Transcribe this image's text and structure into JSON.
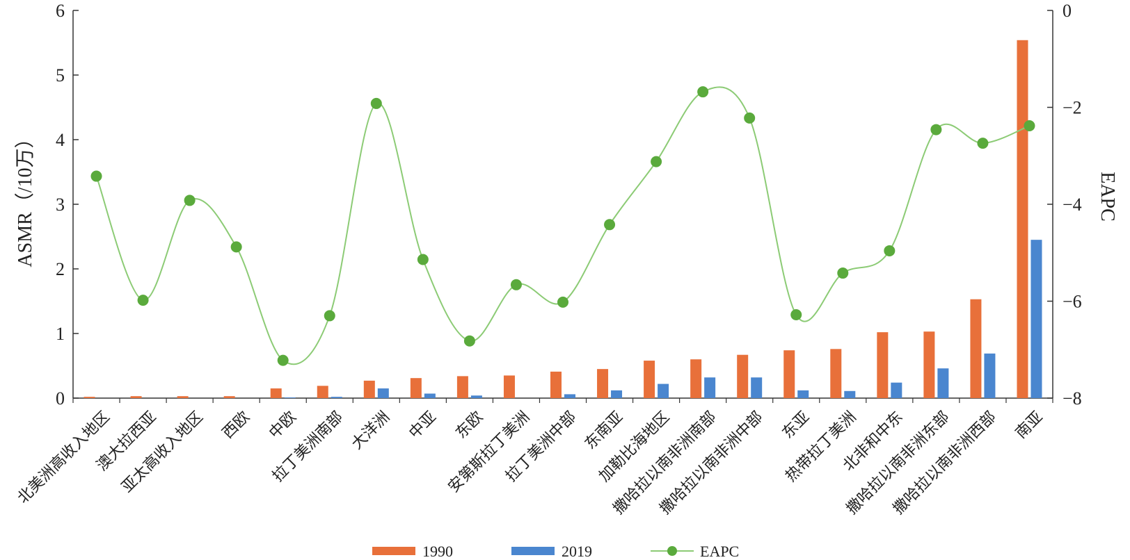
{
  "chart_data": {
    "type": "bar",
    "categories": [
      "北美洲高收入地区",
      "澳大拉西亚",
      "亚太高收入地区",
      "西欧",
      "中欧",
      "拉丁美洲南部",
      "大洋洲",
      "中亚",
      "东欧",
      "安第斯拉丁美洲",
      "拉丁美洲中部",
      "东南亚",
      "加勒比海地区",
      "撒哈拉以南非洲南部",
      "撒哈拉以南非洲中部",
      "东亚",
      "热带拉丁美洲",
      "北非和中东",
      "撒哈拉以南非洲东部",
      "撒哈拉以南非洲西部",
      "南亚"
    ],
    "series": [
      {
        "name": "1990",
        "axis": "left",
        "color": "#E8703A",
        "values": [
          0.02,
          0.03,
          0.03,
          0.03,
          0.15,
          0.19,
          0.27,
          0.31,
          0.34,
          0.35,
          0.41,
          0.45,
          0.58,
          0.6,
          0.67,
          0.74,
          0.76,
          1.02,
          1.03,
          1.53,
          5.54
        ]
      },
      {
        "name": "2019",
        "axis": "left",
        "color": "#4A86CF",
        "values": [
          0.0,
          0.0,
          0.0,
          0.0,
          0.01,
          0.02,
          0.15,
          0.07,
          0.04,
          0.0,
          0.06,
          0.12,
          0.22,
          0.32,
          0.32,
          0.12,
          0.11,
          0.24,
          0.46,
          0.69,
          2.45
        ]
      },
      {
        "name": "EAPC",
        "axis": "right",
        "color": "#5AAA3C",
        "type": "line",
        "values": [
          -3.42,
          -5.98,
          -3.92,
          -4.88,
          -7.22,
          -6.3,
          -1.92,
          -5.14,
          -6.82,
          -5.66,
          -6.02,
          -4.42,
          -3.12,
          -1.68,
          -2.22,
          -6.28,
          -5.42,
          -4.96,
          -2.46,
          -2.74,
          -2.38
        ]
      }
    ],
    "left_axis": {
      "label": "ASMR（/10万）",
      "ylim": [
        0,
        6
      ],
      "ticks": [
        "0",
        "1",
        "2",
        "3",
        "4",
        "5",
        "6"
      ]
    },
    "right_axis": {
      "label": "EAPC",
      "ylim": [
        -8,
        0
      ],
      "ticks": [
        "−8",
        "−6",
        "−4",
        "−2",
        "0"
      ]
    },
    "legend": {
      "placement": "bottom",
      "entries": [
        "1990",
        "2019",
        "EAPC"
      ]
    },
    "grid": false
  }
}
